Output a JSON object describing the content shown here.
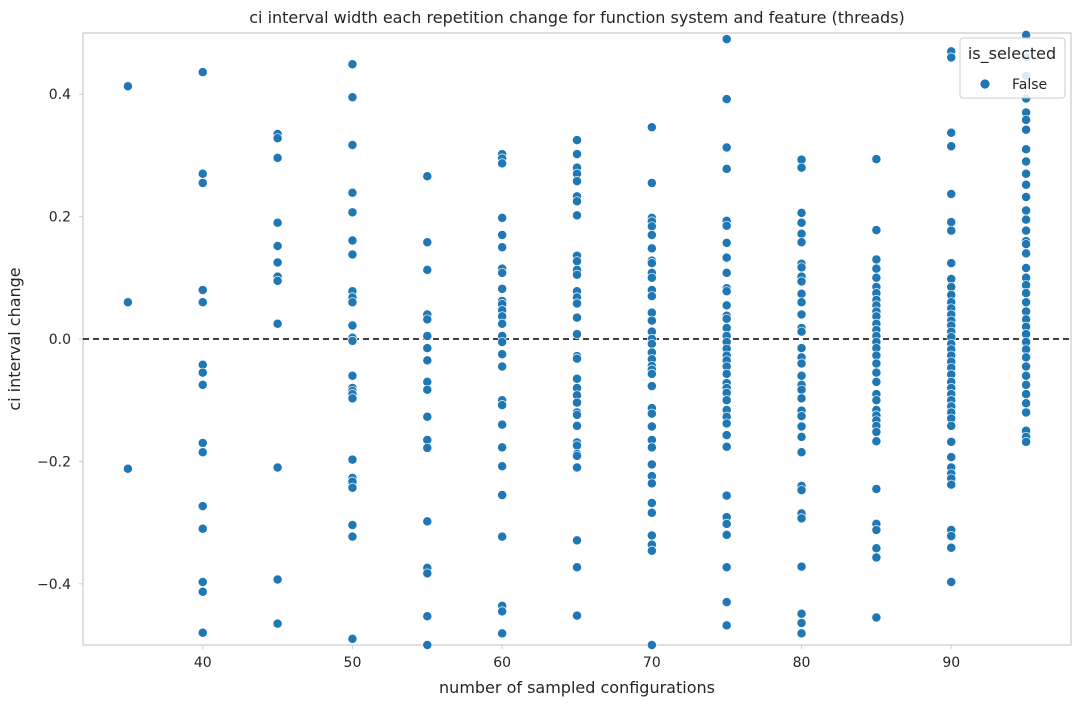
{
  "chart_data": {
    "type": "scatter",
    "title": "ci interval width each repetition change for function system and feature (threads)",
    "xlabel": "number of sampled configurations",
    "ylabel": "ci interval change",
    "xlim": [
      32,
      98
    ],
    "ylim": [
      -0.5,
      0.5
    ],
    "xticks": [
      40,
      50,
      60,
      70,
      80,
      90
    ],
    "xtick_labels": [
      "40",
      "50",
      "60",
      "70",
      "80",
      "90"
    ],
    "yticks": [
      -0.4,
      -0.2,
      0.0,
      0.2,
      0.4
    ],
    "ytick_labels": [
      "−0.4",
      "−0.2",
      "0.0",
      "0.2",
      "0.4"
    ],
    "grid": false,
    "reference_line": {
      "y": 0.0,
      "style": "dashed",
      "color": "#000000"
    },
    "legend": {
      "title": "is_selected",
      "placement": "top-right",
      "entries": [
        {
          "label": "False",
          "color": "#1f77b4"
        }
      ]
    },
    "series": [
      {
        "name": "False",
        "color": "#1f77b4",
        "points": [
          {
            "x": 35,
            "values": [
              0.413,
              0.06,
              -0.212
            ]
          },
          {
            "x": 40,
            "values": [
              0.436,
              0.27,
              0.255,
              0.08,
              0.06,
              -0.042,
              -0.055,
              -0.075,
              -0.17,
              -0.185,
              -0.273,
              -0.31,
              -0.397,
              -0.413,
              -0.48
            ]
          },
          {
            "x": 45,
            "values": [
              0.335,
              0.328,
              0.296,
              0.19,
              0.152,
              0.125,
              0.102,
              0.095,
              0.025,
              -0.21,
              -0.393,
              -0.465
            ]
          },
          {
            "x": 50,
            "values": [
              0.449,
              0.395,
              0.317,
              0.239,
              0.207,
              0.161,
              0.138,
              0.078,
              0.068,
              0.06,
              0.022,
              0.002,
              -0.003,
              -0.06,
              -0.08,
              -0.085,
              -0.09,
              -0.097,
              -0.197,
              -0.227,
              -0.233,
              -0.243,
              -0.304,
              -0.323,
              -0.49
            ]
          },
          {
            "x": 55,
            "values": [
              0.266,
              0.158,
              0.113,
              0.04,
              0.032,
              0.005,
              -0.015,
              -0.035,
              -0.07,
              -0.083,
              -0.127,
              -0.165,
              -0.178,
              -0.298,
              -0.374,
              -0.383,
              -0.453,
              -0.5
            ]
          },
          {
            "x": 60,
            "values": [
              0.302,
              0.295,
              0.287,
              0.198,
              0.17,
              0.15,
              0.115,
              0.108,
              0.082,
              0.062,
              0.057,
              0.047,
              0.037,
              0.025,
              0.005,
              -0.005,
              -0.025,
              -0.045,
              -0.1,
              -0.108,
              -0.14,
              -0.177,
              -0.208,
              -0.255,
              -0.323,
              -0.436,
              -0.445,
              -0.481
            ]
          },
          {
            "x": 65,
            "values": [
              0.325,
              0.302,
              0.28,
              0.27,
              0.258,
              0.233,
              0.225,
              0.202,
              0.136,
              0.127,
              0.113,
              0.105,
              0.078,
              0.068,
              0.058,
              0.035,
              0.008,
              -0.028,
              -0.032,
              -0.065,
              -0.08,
              -0.092,
              -0.104,
              -0.12,
              -0.124,
              -0.142,
              -0.169,
              -0.174,
              -0.188,
              -0.191,
              -0.21,
              -0.329,
              -0.373,
              -0.452
            ]
          },
          {
            "x": 70,
            "values": [
              0.346,
              0.255,
              0.198,
              0.192,
              0.184,
              0.17,
              0.148,
              0.128,
              0.124,
              0.108,
              0.1,
              0.08,
              0.07,
              0.043,
              0.03,
              0.012,
              0.0,
              -0.008,
              -0.022,
              -0.033,
              -0.044,
              -0.05,
              -0.057,
              -0.077,
              -0.113,
              -0.122,
              -0.143,
              -0.165,
              -0.177,
              -0.205,
              -0.224,
              -0.236,
              -0.268,
              -0.284,
              -0.321,
              -0.336,
              -0.346,
              -0.5
            ]
          },
          {
            "x": 75,
            "values": [
              0.49,
              0.392,
              0.313,
              0.278,
              0.193,
              0.185,
              0.157,
              0.133,
              0.108,
              0.083,
              0.078,
              0.055,
              0.038,
              0.033,
              0.018,
              0.005,
              -0.005,
              -0.016,
              -0.027,
              -0.035,
              -0.045,
              -0.057,
              -0.072,
              -0.08,
              -0.088,
              -0.1,
              -0.116,
              -0.127,
              -0.138,
              -0.157,
              -0.176,
              -0.256,
              -0.291,
              -0.302,
              -0.32,
              -0.373,
              -0.43,
              -0.468
            ]
          },
          {
            "x": 80,
            "values": [
              0.293,
              0.28,
              0.206,
              0.19,
              0.172,
              0.158,
              0.123,
              0.117,
              0.102,
              0.094,
              0.074,
              0.06,
              0.04,
              0.018,
              0.012,
              -0.015,
              -0.03,
              -0.04,
              -0.06,
              -0.075,
              -0.083,
              -0.097,
              -0.117,
              -0.126,
              -0.143,
              -0.16,
              -0.185,
              -0.24,
              -0.247,
              -0.285,
              -0.293,
              -0.372,
              -0.449,
              -0.464,
              -0.481
            ]
          },
          {
            "x": 85,
            "values": [
              0.294,
              0.178,
              0.13,
              0.115,
              0.1,
              0.085,
              0.075,
              0.064,
              0.055,
              0.045,
              0.037,
              0.025,
              0.015,
              0.005,
              -0.005,
              -0.015,
              -0.027,
              -0.04,
              -0.055,
              -0.07,
              -0.09,
              -0.1,
              -0.116,
              -0.125,
              -0.133,
              -0.142,
              -0.152,
              -0.167,
              -0.245,
              -0.302,
              -0.312,
              -0.342,
              -0.357,
              -0.455
            ]
          },
          {
            "x": 90,
            "values": [
              0.47,
              0.46,
              0.337,
              0.315,
              0.237,
              0.191,
              0.177,
              0.124,
              0.098,
              0.085,
              0.072,
              0.06,
              0.05,
              0.04,
              0.03,
              0.022,
              0.012,
              0.003,
              -0.008,
              -0.017,
              -0.027,
              -0.037,
              -0.047,
              -0.058,
              -0.07,
              -0.08,
              -0.09,
              -0.1,
              -0.11,
              -0.12,
              -0.13,
              -0.142,
              -0.168,
              -0.193,
              -0.21,
              -0.22,
              -0.228,
              -0.238,
              -0.312,
              -0.322,
              -0.341,
              -0.397
            ]
          },
          {
            "x": 95,
            "values": [
              0.497,
              0.46,
              0.43,
              0.393,
              0.37,
              0.358,
              0.342,
              0.31,
              0.29,
              0.27,
              0.252,
              0.232,
              0.21,
              0.195,
              0.177,
              0.16,
              0.155,
              0.14,
              0.116,
              0.1,
              0.088,
              0.075,
              0.06,
              0.045,
              0.032,
              0.02,
              0.008,
              -0.005,
              -0.017,
              -0.03,
              -0.045,
              -0.06,
              -0.075,
              -0.09,
              -0.105,
              -0.12,
              -0.15,
              -0.16,
              -0.168
            ]
          }
        ]
      }
    ]
  }
}
